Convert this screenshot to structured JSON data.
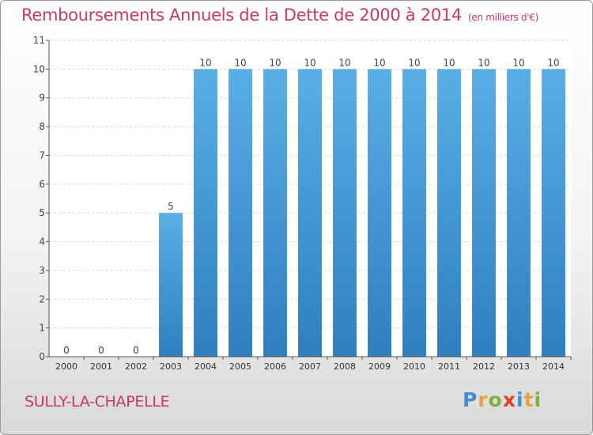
{
  "title": "Remboursements Annuels de la Dette de 2000 à 2014",
  "unit": "(en milliers d'€)",
  "city": "SULLY-LA-CHAPELLE",
  "logo": "Proxiti",
  "colors": {
    "accent": "#c8366b",
    "bar_top": "#5aaee6",
    "bar_bottom": "#2f7fc0"
  },
  "chart_data": {
    "type": "bar",
    "categories": [
      "2000",
      "2001",
      "2002",
      "2003",
      "2004",
      "2005",
      "2006",
      "2007",
      "2008",
      "2009",
      "2010",
      "2011",
      "2012",
      "2013",
      "2014"
    ],
    "values": [
      0,
      0,
      0,
      5,
      10,
      10,
      10,
      10,
      10,
      10,
      10,
      10,
      10,
      10,
      10
    ],
    "ylim": [
      0,
      11
    ],
    "yticks": [
      0,
      1,
      2,
      3,
      4,
      5,
      6,
      7,
      8,
      9,
      10,
      11
    ],
    "grid": true,
    "data_labels": true
  }
}
